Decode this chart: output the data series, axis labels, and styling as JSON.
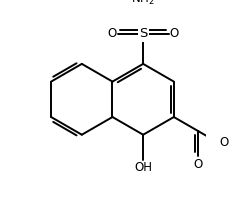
{
  "bg_color": "#ffffff",
  "lw": 1.4,
  "fs": 8.5,
  "figsize": [
    2.3,
    2.18
  ],
  "dpi": 100,
  "xlim": [
    0,
    230
  ],
  "ylim": [
    0,
    218
  ],
  "C8a": [
    108,
    118
  ],
  "C4a": [
    108,
    78
  ],
  "b": 46
}
